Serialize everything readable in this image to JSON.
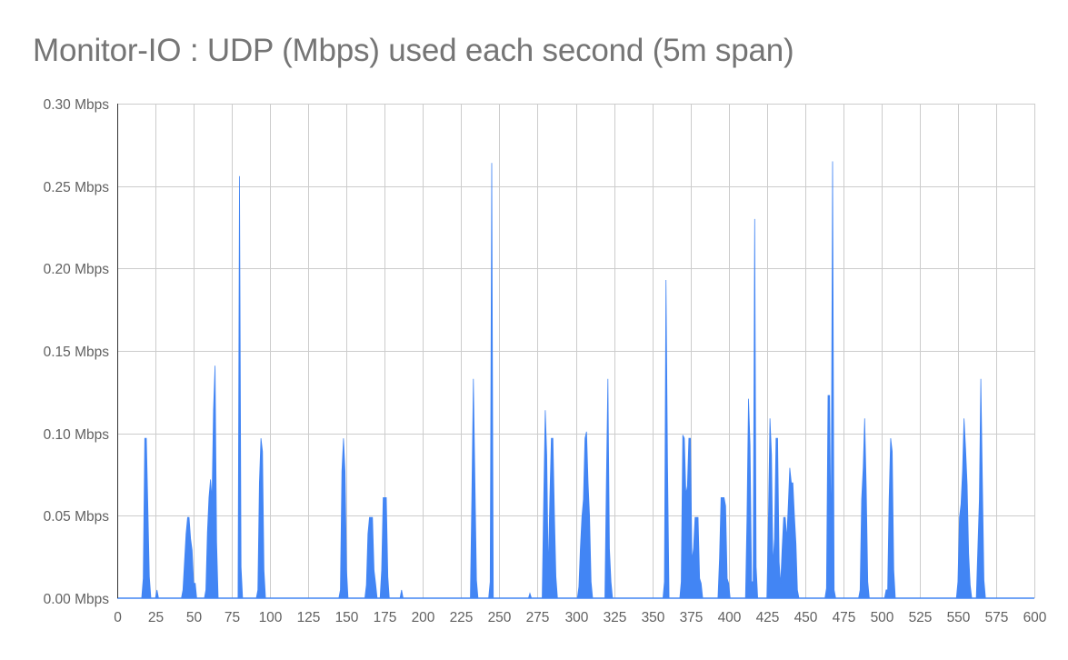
{
  "chart_data": {
    "type": "area",
    "title": "Monitor-IO : UDP (Mbps) used each second (5m span)",
    "xlabel": "",
    "ylabel": "",
    "xlim": [
      0,
      600
    ],
    "ylim": [
      0,
      0.3
    ],
    "grid": true,
    "legend": "none",
    "color": "#4285f4",
    "x_ticks": [
      0,
      25,
      50,
      75,
      100,
      125,
      150,
      175,
      200,
      225,
      250,
      275,
      300,
      325,
      350,
      375,
      400,
      425,
      450,
      475,
      500,
      525,
      550,
      575,
      600
    ],
    "y_ticks": [
      "0.00 Mbps",
      "0.05 Mbps",
      "0.10 Mbps",
      "0.15 Mbps",
      "0.20 Mbps",
      "0.25 Mbps",
      "0.30 Mbps"
    ],
    "y_tick_values": [
      0,
      0.05,
      0.1,
      0.15,
      0.2,
      0.25,
      0.3
    ],
    "series": [
      {
        "name": "UDP (Mbps)",
        "points": [
          [
            0,
            0
          ],
          [
            16,
            0
          ],
          [
            17,
            0.012
          ],
          [
            18,
            0.097
          ],
          [
            19,
            0.097
          ],
          [
            20,
            0.057
          ],
          [
            21,
            0.013
          ],
          [
            22,
            0
          ],
          [
            25,
            0
          ],
          [
            26,
            0.005
          ],
          [
            27,
            0
          ],
          [
            42,
            0
          ],
          [
            43,
            0.005
          ],
          [
            44,
            0.022
          ],
          [
            45,
            0.039
          ],
          [
            46,
            0.049
          ],
          [
            47,
            0.049
          ],
          [
            48,
            0.036
          ],
          [
            49,
            0.029
          ],
          [
            50,
            0.009
          ],
          [
            51,
            0.009
          ],
          [
            52,
            0
          ],
          [
            57,
            0
          ],
          [
            58,
            0.005
          ],
          [
            59,
            0.04
          ],
          [
            60,
            0.061
          ],
          [
            61,
            0.072
          ],
          [
            62,
            0.06
          ],
          [
            63,
            0.114
          ],
          [
            64,
            0.141
          ],
          [
            65,
            0.034
          ],
          [
            66,
            0
          ],
          [
            79,
            0
          ],
          [
            80,
            0.256
          ],
          [
            81,
            0.019
          ],
          [
            82,
            0
          ],
          [
            91,
            0
          ],
          [
            92,
            0.005
          ],
          [
            93,
            0.07
          ],
          [
            94,
            0.097
          ],
          [
            95,
            0.089
          ],
          [
            96,
            0.017
          ],
          [
            97,
            0
          ],
          [
            145,
            0
          ],
          [
            146,
            0.005
          ],
          [
            147,
            0.077
          ],
          [
            148,
            0.097
          ],
          [
            149,
            0.077
          ],
          [
            150,
            0.017
          ],
          [
            151,
            0
          ],
          [
            162,
            0
          ],
          [
            163,
            0.008
          ],
          [
            164,
            0.039
          ],
          [
            165,
            0.049
          ],
          [
            166,
            0.049
          ],
          [
            167,
            0.049
          ],
          [
            168,
            0.017
          ],
          [
            169,
            0.009
          ],
          [
            170,
            0
          ],
          [
            172,
            0
          ],
          [
            173,
            0.017
          ],
          [
            174,
            0.061
          ],
          [
            175,
            0.061
          ],
          [
            176,
            0.061
          ],
          [
            177,
            0.013
          ],
          [
            178,
            0
          ],
          [
            185,
            0
          ],
          [
            186,
            0.005
          ],
          [
            187,
            0
          ],
          [
            231,
            0
          ],
          [
            232,
            0.06
          ],
          [
            233,
            0.133
          ],
          [
            234,
            0.071
          ],
          [
            235,
            0.011
          ],
          [
            236,
            0
          ],
          [
            243,
            0
          ],
          [
            244,
            0.01
          ],
          [
            245,
            0.264
          ],
          [
            246,
            0
          ],
          [
            269,
            0
          ],
          [
            270,
            0.003
          ],
          [
            271,
            0
          ],
          [
            278,
            0
          ],
          [
            279,
            0.06
          ],
          [
            280,
            0.114
          ],
          [
            281,
            0.087
          ],
          [
            282,
            0.015
          ],
          [
            283,
            0.06
          ],
          [
            284,
            0.097
          ],
          [
            285,
            0.097
          ],
          [
            286,
            0.05
          ],
          [
            287,
            0.013
          ],
          [
            288,
            0
          ],
          [
            301,
            0
          ],
          [
            302,
            0.007
          ],
          [
            303,
            0.03
          ],
          [
            304,
            0.049
          ],
          [
            305,
            0.06
          ],
          [
            306,
            0.097
          ],
          [
            307,
            0.101
          ],
          [
            308,
            0.07
          ],
          [
            309,
            0.05
          ],
          [
            310,
            0.01
          ],
          [
            311,
            0
          ],
          [
            319,
            0
          ],
          [
            320,
            0.069
          ],
          [
            321,
            0.133
          ],
          [
            322,
            0.03
          ],
          [
            323,
            0.01
          ],
          [
            324,
            0
          ],
          [
            357,
            0
          ],
          [
            358,
            0.01
          ],
          [
            359,
            0.193
          ],
          [
            360,
            0.082
          ],
          [
            361,
            0
          ],
          [
            368,
            0
          ],
          [
            369,
            0.01
          ],
          [
            370,
            0.099
          ],
          [
            371,
            0.097
          ],
          [
            372,
            0.063
          ],
          [
            373,
            0.068
          ],
          [
            374,
            0.097
          ],
          [
            375,
            0.097
          ],
          [
            376,
            0.023
          ],
          [
            377,
            0.03
          ],
          [
            378,
            0.049
          ],
          [
            379,
            0.049
          ],
          [
            380,
            0.049
          ],
          [
            381,
            0.012
          ],
          [
            382,
            0.009
          ],
          [
            383,
            0
          ],
          [
            393,
            0
          ],
          [
            394,
            0.024
          ],
          [
            395,
            0.061
          ],
          [
            396,
            0.061
          ],
          [
            397,
            0.061
          ],
          [
            398,
            0.056
          ],
          [
            399,
            0.012
          ],
          [
            400,
            0.009
          ],
          [
            401,
            0
          ],
          [
            411,
            0
          ],
          [
            412,
            0.048
          ],
          [
            413,
            0.121
          ],
          [
            414,
            0.093
          ],
          [
            415,
            0.01
          ],
          [
            416,
            0.01
          ],
          [
            417,
            0.23
          ],
          [
            418,
            0.019
          ],
          [
            419,
            0
          ],
          [
            425,
            0
          ],
          [
            426,
            0.048
          ],
          [
            427,
            0.109
          ],
          [
            428,
            0.087
          ],
          [
            429,
            0.02
          ],
          [
            430,
            0.036
          ],
          [
            431,
            0.097
          ],
          [
            432,
            0.097
          ],
          [
            433,
            0.022
          ],
          [
            434,
            0.008
          ],
          [
            435,
            0.03
          ],
          [
            436,
            0.049
          ],
          [
            437,
            0.049
          ],
          [
            438,
            0.036
          ],
          [
            439,
            0.057
          ],
          [
            440,
            0.079
          ],
          [
            441,
            0.07
          ],
          [
            442,
            0.07
          ],
          [
            443,
            0.05
          ],
          [
            444,
            0.033
          ],
          [
            445,
            0.005
          ],
          [
            446,
            0
          ],
          [
            463,
            0
          ],
          [
            464,
            0.006
          ],
          [
            465,
            0.123
          ],
          [
            466,
            0.123
          ],
          [
            467,
            0.03
          ],
          [
            468,
            0.265
          ],
          [
            469,
            0.005
          ],
          [
            470,
            0
          ],
          [
            485,
            0
          ],
          [
            486,
            0.005
          ],
          [
            487,
            0.06
          ],
          [
            488,
            0.079
          ],
          [
            489,
            0.109
          ],
          [
            490,
            0.067
          ],
          [
            491,
            0.01
          ],
          [
            492,
            0
          ],
          [
            502,
            0
          ],
          [
            503,
            0.005
          ],
          [
            504,
            0.005
          ],
          [
            505,
            0.06
          ],
          [
            506,
            0.097
          ],
          [
            507,
            0.089
          ],
          [
            508,
            0.017
          ],
          [
            509,
            0
          ],
          [
            549,
            0
          ],
          [
            550,
            0.01
          ],
          [
            551,
            0.049
          ],
          [
            552,
            0.057
          ],
          [
            553,
            0.077
          ],
          [
            554,
            0.109
          ],
          [
            555,
            0.091
          ],
          [
            556,
            0.069
          ],
          [
            557,
            0.027
          ],
          [
            558,
            0.008
          ],
          [
            559,
            0
          ],
          [
            562,
            0
          ],
          [
            563,
            0.03
          ],
          [
            564,
            0.06
          ],
          [
            565,
            0.133
          ],
          [
            566,
            0.071
          ],
          [
            567,
            0.011
          ],
          [
            568,
            0
          ],
          [
            600,
            0
          ]
        ]
      }
    ]
  }
}
